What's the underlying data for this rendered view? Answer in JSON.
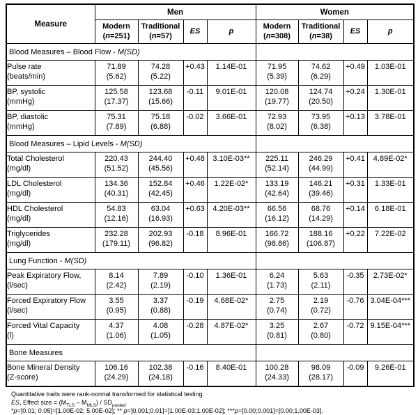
{
  "table": {
    "measure_header": "Measure",
    "group_men": "Men",
    "group_women": "Women",
    "n_var": "n",
    "subheaders": {
      "men_modern": {
        "label": "Modern",
        "n": "251"
      },
      "men_traditional": {
        "label": "Traditional",
        "n": "57"
      },
      "men_es": "ES",
      "men_p": "p",
      "women_modern": {
        "label": "Modern",
        "n": "308"
      },
      "women_traditional": {
        "label": "Traditional",
        "n": "38"
      },
      "women_es": "ES",
      "women_p": "p"
    },
    "cell_names": [
      "men-modern",
      "men-traditional",
      "men-es",
      "men-p",
      "women-modern",
      "women-traditional",
      "women-es",
      "women-p"
    ],
    "sections": [
      {
        "title": "Blood Measures – Blood Flow",
        "msd": "M(SD)",
        "rows": [
          {
            "measure": "Pulse rate",
            "unit": "(beats/min)",
            "cells": [
              [
                "71.89",
                "(5.62)"
              ],
              [
                "74.28",
                "(5.22)"
              ],
              "+0.43",
              "1.14E-01",
              [
                "71.95",
                "(5.39)"
              ],
              [
                "74.62",
                "(6.29)"
              ],
              "+0.49",
              "1.03E-01"
            ]
          },
          {
            "measure": "BP, systolic",
            "unit": "(mmHg)",
            "cells": [
              [
                "125.58",
                "(17.37)"
              ],
              [
                "123.68",
                "(15.66)"
              ],
              "-0.11",
              "9.01E-01",
              [
                "120.08",
                "(19.77)"
              ],
              [
                "124.74",
                "(20.50)"
              ],
              "+0.24",
              "1.30E-01"
            ]
          },
          {
            "measure": "BP, diastolic",
            "unit": "(mmHg)",
            "cells": [
              [
                "75.31",
                "(7.89)"
              ],
              [
                "75.18",
                "(6.88)"
              ],
              "-0.02",
              "3.66E-01",
              [
                "72.93",
                "(8.02)"
              ],
              [
                "73.95",
                "(6.38)"
              ],
              "+0.13",
              "3.78E-01"
            ]
          }
        ]
      },
      {
        "title": "Blood Measures – Lipid Levels",
        "msd": "M(SD)",
        "rows": [
          {
            "measure": "Total Cholesterol",
            "unit": "(mg/dl)",
            "cells": [
              [
                "220.43",
                "(51.52)"
              ],
              [
                "244.40",
                "(45.56)"
              ],
              "+0.48",
              "3.10E-03**",
              [
                "225.11",
                "(52.14)"
              ],
              [
                "246.29",
                "(44.99)"
              ],
              "+0.41",
              "4.89E-02*"
            ]
          },
          {
            "measure": "LDL Cholesterol",
            "unit": "(mg/dl)",
            "cells": [
              [
                "134.36",
                "(40.31)"
              ],
              [
                "152.84",
                "(42.45)"
              ],
              "+0.46",
              "1.22E-02*",
              [
                "133.19",
                "(42.64)"
              ],
              [
                "146.21",
                "(39.46)"
              ],
              "+0.31",
              "1.33E-01"
            ]
          },
          {
            "measure": "HDL Cholesterol",
            "unit": "(mg/dl)",
            "cells": [
              [
                "54.83",
                "(12.16)"
              ],
              [
                "63.04",
                "(16.93)"
              ],
              "+0.63",
              "4.20E-03**",
              [
                "66.56",
                "(16.12)"
              ],
              [
                "68.76",
                "(14.29)"
              ],
              "+0.14",
              "6.18E-01"
            ]
          },
          {
            "measure": "Triglycerides",
            "unit": "(mg/dl)",
            "cells": [
              [
                "232.28",
                "(179.11)"
              ],
              [
                "202.93",
                "(96.82)"
              ],
              "-0.18",
              "8.96E-01",
              [
                "166.72",
                "(98.86)"
              ],
              [
                "188.16",
                "(106.87)"
              ],
              "+0.22",
              "7.22E-02"
            ]
          }
        ]
      },
      {
        "title": "Lung Function",
        "msd": "M(SD)",
        "rows": [
          {
            "measure": "Peak Expiratory Flow,",
            "unit": "(l/sec)",
            "cells": [
              [
                "8.14",
                "(2.42)"
              ],
              [
                "7.89",
                "(2.19)"
              ],
              "-0.10",
              "1.36E-01",
              [
                "6.24",
                "(1.73)"
              ],
              [
                "5.63",
                "(2.11)"
              ],
              "-0.35",
              "2.73E-02*"
            ]
          },
          {
            "measure": "Forced Expiratory Flow",
            "unit": "(l/sec)",
            "cells": [
              [
                "3.55",
                "(0.95)"
              ],
              [
                "3.37",
                "(0.88)"
              ],
              "-0.19",
              "4.68E-02*",
              [
                "2.75",
                "(0.74)"
              ],
              [
                "2.19",
                "(0.72)"
              ],
              "-0.76",
              "3.04E-04***"
            ]
          },
          {
            "measure": "Forced Vital Capacity",
            "unit": "(l)",
            "cells": [
              [
                "4.37",
                "(1.06)"
              ],
              [
                "4.08",
                "(1.05)"
              ],
              "-0.28",
              "4.87E-02*",
              [
                "3.25",
                "(0.81)"
              ],
              [
                "2.67",
                "(0.80)"
              ],
              "-0.72",
              "9.15E-04***"
            ]
          }
        ]
      },
      {
        "title": "Bone Measures",
        "msd": null,
        "rows": [
          {
            "measure": "Bone Mineral Density",
            "unit": "(Z-score)",
            "cells": [
              [
                "106.16",
                "(24.29)"
              ],
              [
                "102.38",
                "(24.18)"
              ],
              "-0.16",
              "8.40E-01",
              [
                "100.28",
                "(24.33)"
              ],
              [
                "98.09",
                "(28.17)"
              ],
              "-0.09",
              "9.26E-01"
            ]
          }
        ]
      }
    ]
  },
  "footnotes": {
    "line1": "Quantitative traits were rank-normal transformed for statistical testing.",
    "es_formula": {
      "es": "ES",
      "t1": ", Effect size = (M",
      "sub1": "TLS",
      "t2": " – M",
      "sub2": "MLS",
      "t3": ") / SD",
      "sub3": "pooled"
    },
    "pvalues": {
      "s1": "*",
      "p1": "p",
      "t1": "=]0.01; 0.05]=[1.00E-02; 5.00E-02]; ",
      "s2": "** ",
      "p2": "p",
      "t2": "=]0.001;0.01]=]1.00E-03;1.00E-02]; ",
      "s3": "***",
      "p3": "p",
      "t3": "=[0.00;0.001]=[0.00;1.00E-03]."
    }
  },
  "colors": {
    "background": "#ffffff",
    "text": "#000000",
    "border": "#000000"
  }
}
